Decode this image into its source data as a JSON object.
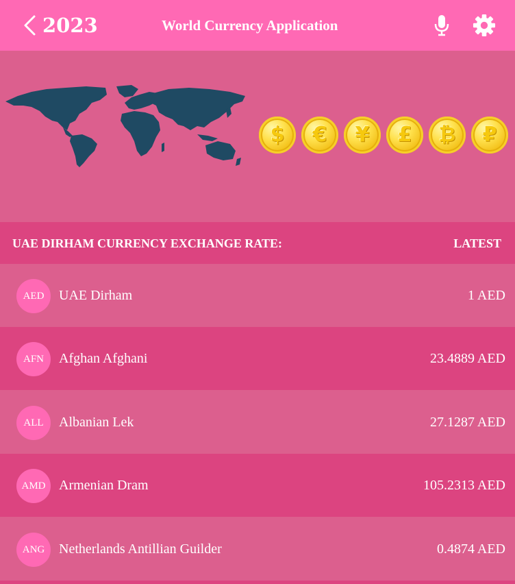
{
  "app_bar": {
    "year": "2023",
    "title": "World Currency Application",
    "icons": [
      "chevron-left-icon",
      "microphone-icon",
      "gear-icon"
    ]
  },
  "banner": {
    "coin_symbols": [
      "$",
      "€",
      "¥",
      "£",
      "₿",
      "₽"
    ]
  },
  "list_header": {
    "title": "UAE DIRHAM CURRENCY EXCHANGE RATE:",
    "right": "LATEST"
  },
  "currencies": [
    {
      "code": "AED",
      "name": "UAE Dirham",
      "rate": "1 AED"
    },
    {
      "code": "AFN",
      "name": "Afghan Afghani",
      "rate": "23.4889 AED"
    },
    {
      "code": "ALL",
      "name": "Albanian Lek",
      "rate": "27.1287 AED"
    },
    {
      "code": "AMD",
      "name": "Armenian Dram",
      "rate": "105.2313 AED"
    },
    {
      "code": "ANG",
      "name": "Netherlands Antillian Guilder",
      "rate": "0.4874 AED"
    }
  ],
  "colors": {
    "app_bar": "#ff69b4",
    "row_light": "#dc5f8e",
    "row_dark": "#dc4480",
    "badge": "#ff69b4",
    "map": "#1f4a63"
  }
}
